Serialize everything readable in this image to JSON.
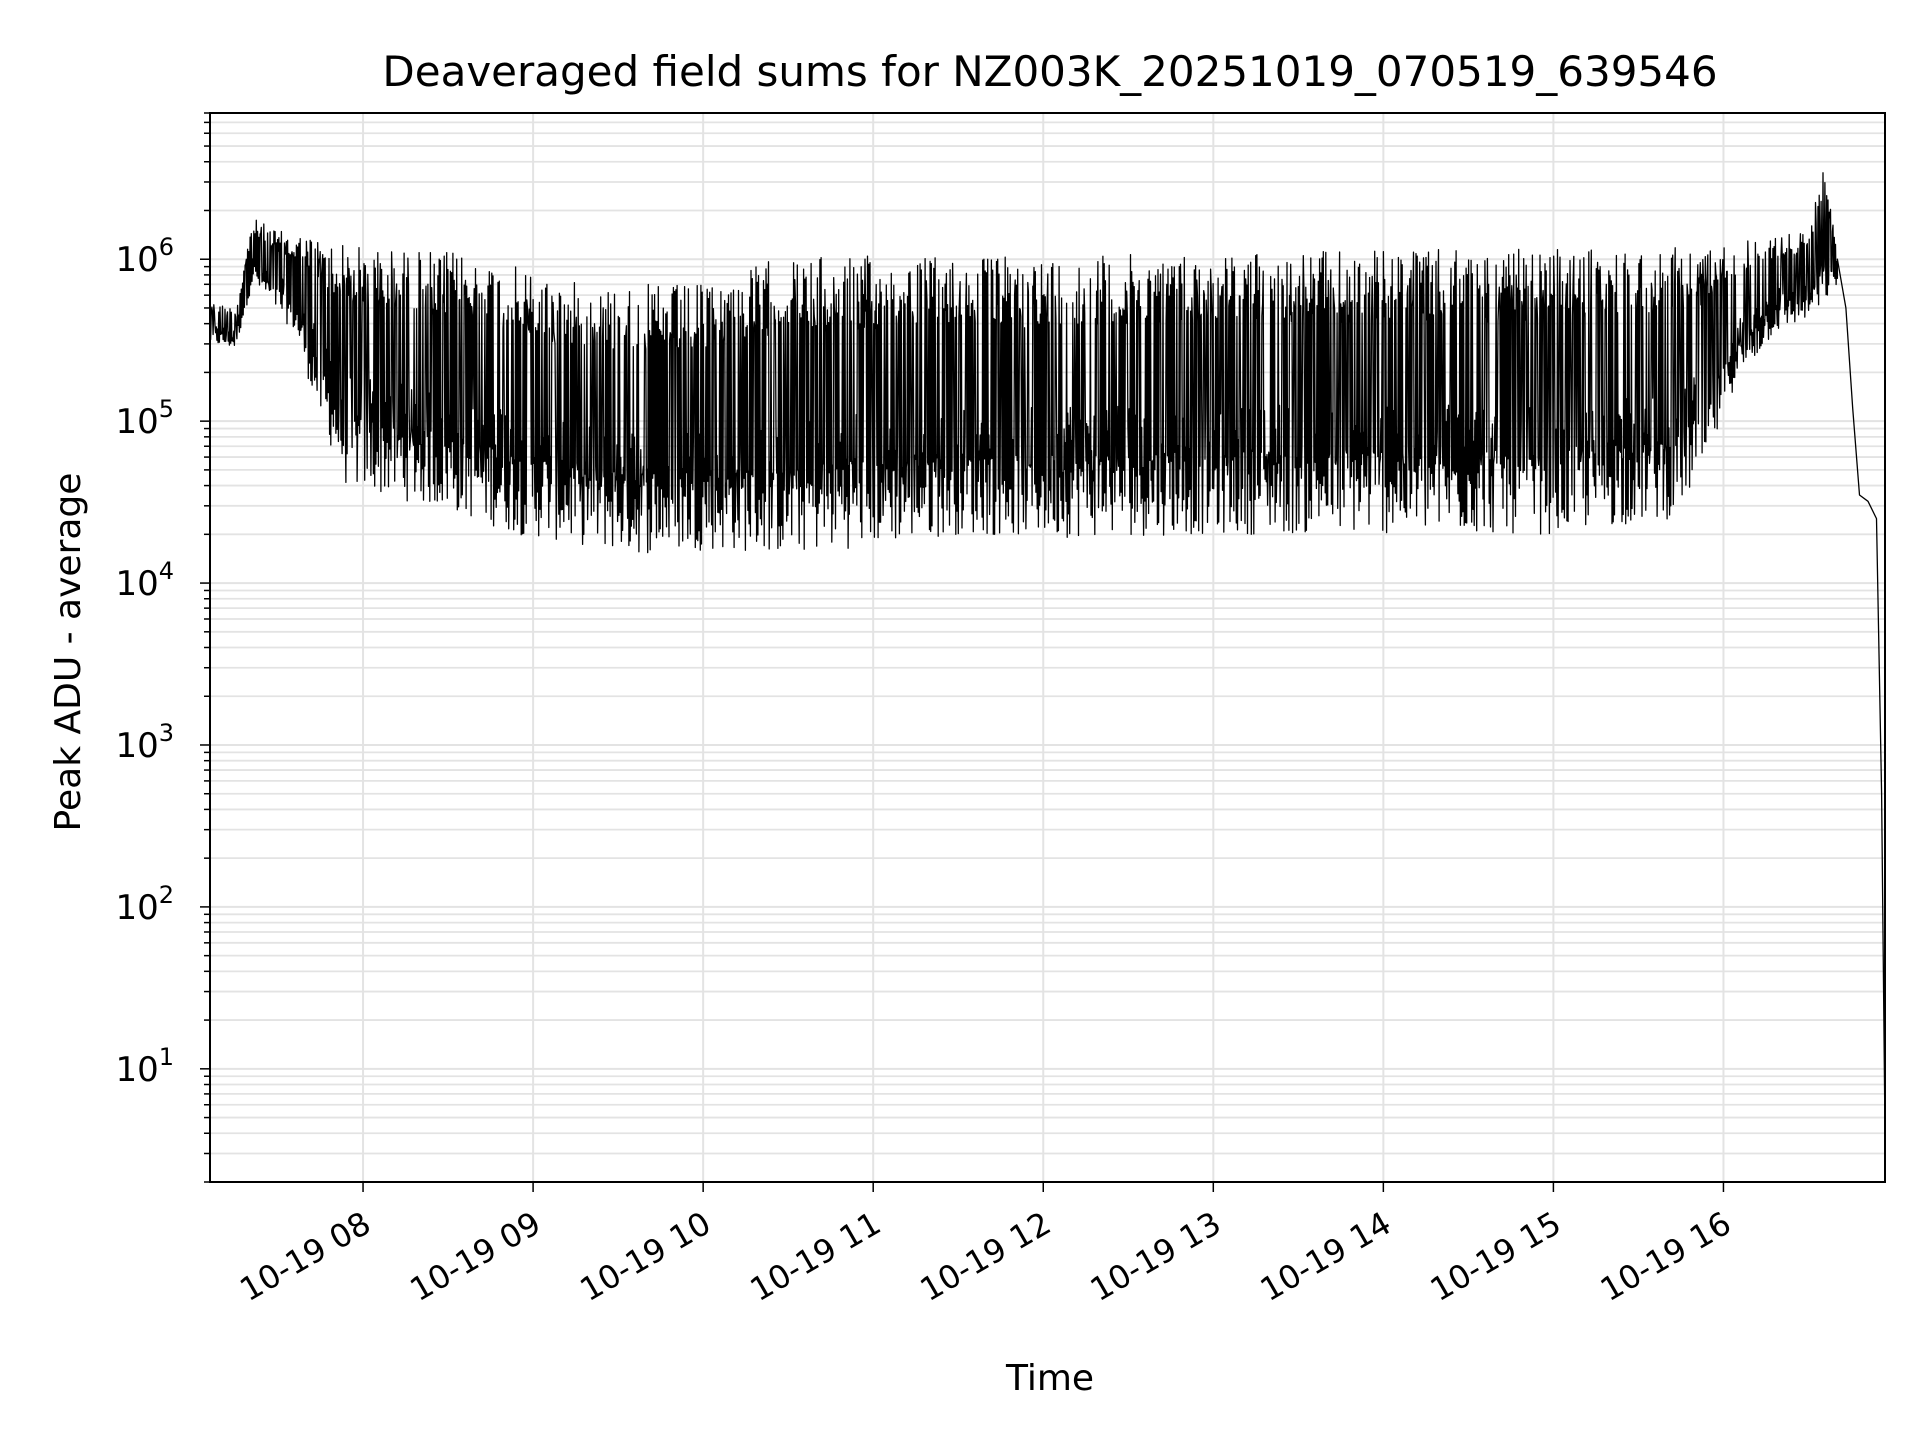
{
  "chart_data": {
    "type": "line",
    "title": "Deaveraged field sums for NZ003K_20251019_070519_639546",
    "xlabel": "Time",
    "ylabel": "Peak ADU - average",
    "yscale": "log",
    "ylim": [
      2,
      8000000
    ],
    "xlim_hours": [
      7.1,
      16.95
    ],
    "grid": true,
    "line_color": "#000000",
    "grid_color": "#e3e3e3",
    "x_ticks": [
      {
        "hour": 8,
        "label": "10-19 08"
      },
      {
        "hour": 9,
        "label": "10-19 09"
      },
      {
        "hour": 10,
        "label": "10-19 10"
      },
      {
        "hour": 11,
        "label": "10-19 11"
      },
      {
        "hour": 12,
        "label": "10-19 12"
      },
      {
        "hour": 13,
        "label": "10-19 13"
      },
      {
        "hour": 14,
        "label": "10-19 14"
      },
      {
        "hour": 15,
        "label": "10-19 15"
      },
      {
        "hour": 16,
        "label": "10-19 16"
      }
    ],
    "y_ticks": [
      {
        "value": 10,
        "base": "10",
        "exp": "1"
      },
      {
        "value": 100,
        "base": "10",
        "exp": "2"
      },
      {
        "value": 1000,
        "base": "10",
        "exp": "3"
      },
      {
        "value": 10000,
        "base": "10",
        "exp": "4"
      },
      {
        "value": 100000,
        "base": "10",
        "exp": "5"
      },
      {
        "value": 1000000,
        "base": "10",
        "exp": "6"
      }
    ],
    "series": [
      {
        "name": "Peak ADU - average",
        "envelope": {
          "note": "oscillating signal: rapid alternation between upper and lower envelope values (hours, ADU)",
          "upper": [
            [
              7.1,
              550000
            ],
            [
              7.25,
              500000
            ],
            [
              7.35,
              1800000
            ],
            [
              7.5,
              1500000
            ],
            [
              7.7,
              1400000
            ],
            [
              8.0,
              1200000
            ],
            [
              8.3,
              1150000
            ],
            [
              8.6,
              1100000
            ],
            [
              8.9,
              900000
            ],
            [
              9.3,
              700000
            ],
            [
              9.6,
              700000
            ],
            [
              10.0,
              700000
            ],
            [
              10.4,
              1000000
            ],
            [
              10.8,
              1050000
            ],
            [
              11.2,
              1050000
            ],
            [
              11.6,
              1050000
            ],
            [
              12.0,
              1050000
            ],
            [
              13.0,
              1100000
            ],
            [
              14.0,
              1150000
            ],
            [
              15.0,
              1150000
            ],
            [
              15.9,
              1200000
            ],
            [
              16.3,
              1400000
            ],
            [
              16.5,
              1500000
            ],
            [
              16.6,
              4200000
            ],
            [
              16.67,
              1000000
            ]
          ],
          "lower": [
            [
              7.1,
              300000
            ],
            [
              7.25,
              280000
            ],
            [
              7.35,
              700000
            ],
            [
              7.6,
              350000
            ],
            [
              7.75,
              100000
            ],
            [
              7.9,
              40000
            ],
            [
              8.1,
              35000
            ],
            [
              8.5,
              28000
            ],
            [
              8.9,
              20000
            ],
            [
              9.3,
              17000
            ],
            [
              9.6,
              15000
            ],
            [
              10.0,
              16000
            ],
            [
              10.5,
              15000
            ],
            [
              11.0,
              17000
            ],
            [
              11.5,
              20000
            ],
            [
              12.0,
              19000
            ],
            [
              13.0,
              20000
            ],
            [
              14.0,
              20000
            ],
            [
              15.0,
              20000
            ],
            [
              15.7,
              25000
            ],
            [
              15.9,
              50000
            ],
            [
              16.05,
              150000
            ],
            [
              16.3,
              350000
            ],
            [
              16.55,
              450000
            ],
            [
              16.67,
              700000
            ]
          ],
          "tail": [
            [
              16.67,
              1000000
            ],
            [
              16.72,
              500000
            ],
            [
              16.76,
              120000
            ],
            [
              16.8,
              35000
            ],
            [
              16.85,
              32000
            ],
            [
              16.9,
              25000
            ],
            [
              16.93,
              500
            ],
            [
              16.95,
              4
            ]
          ]
        }
      }
    ]
  }
}
